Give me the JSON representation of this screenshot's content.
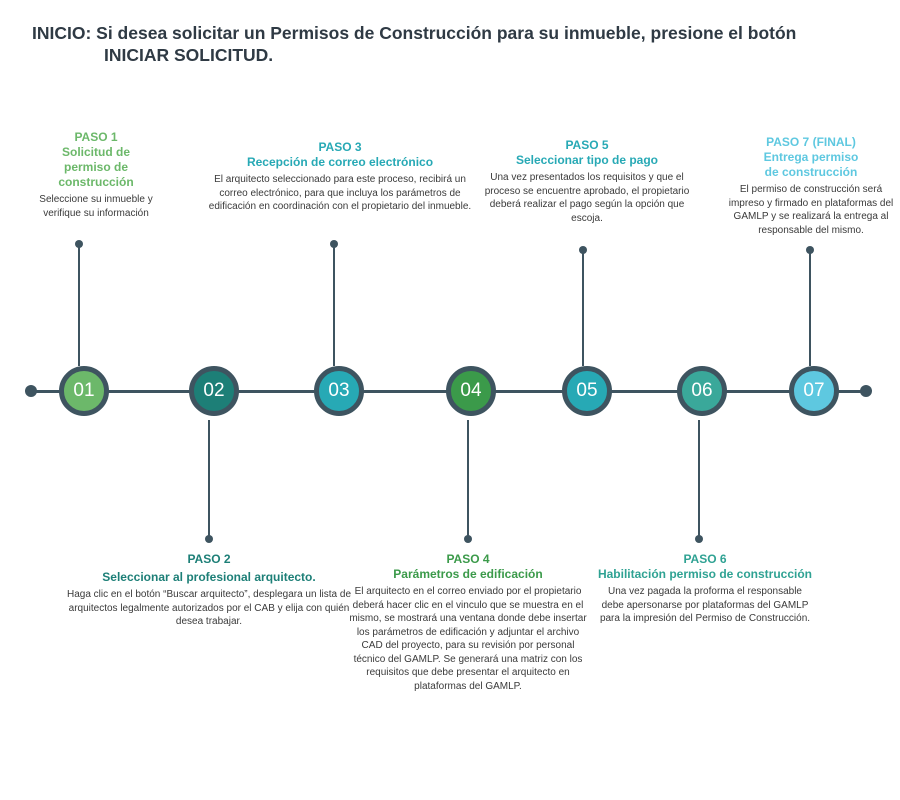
{
  "intro": {
    "line1": "INICIO:  Si desea solicitar un Permisos de Construcción para su inmueble, presione el botón",
    "line2": "INICIAR SOLICITUD."
  },
  "colors": {
    "line": "#3e5460",
    "green_light": "#6cb86a",
    "teal_dark": "#1d7f77",
    "teal": "#27a9b5",
    "green_dark": "#3b9a4a",
    "light_blue": "#5ec8e0"
  },
  "steps": [
    {
      "number": "01",
      "title": "PASO 1",
      "subtitle": "Solicitud de permiso de construcción",
      "description": "Seleccione su inmueble y verifique su información"
    },
    {
      "number": "02",
      "title": "PASO 2",
      "subtitle": "Seleccionar al profesional arquitecto.",
      "description": "Haga clic en el botón “Buscar arquitecto”, desplegara un lista de arquitectos legalmente autorizados por el CAB y elija con quién desea trabajar."
    },
    {
      "number": "03",
      "title": "PASO 3",
      "subtitle": "Recepción de correo electrónico",
      "description": "El arquitecto seleccionado para este proceso, recibirá un correo electrónico, para que incluya los parámetros de edificación en coordinación con el propietario del inmueble."
    },
    {
      "number": "04",
      "title": "PASO 4",
      "subtitle": "Parámetros de edificación",
      "description": "El arquitecto en el correo enviado por el propietario deberá hacer clic en el vinculo que se muestra en el mismo, se mostrará una ventana donde debe insertar los parámetros de edificación y adjuntar el archivo CAD del proyecto, para su revisión por personal técnico del GAMLP. Se generará una matriz con los requisitos que debe presentar el arquitecto en plataformas del GAMLP."
    },
    {
      "number": "05",
      "title": "PASO 5",
      "subtitle": "Seleccionar tipo de pago",
      "description": "Una vez presentados los requisitos y que el proceso se encuentre aprobado, el propietario deberá realizar el pago según la opción que escoja."
    },
    {
      "number": "06",
      "title": "PASO 6",
      "subtitle": "Habilitación permiso de construcción",
      "description": "Una vez pagada la proforma el responsable debe apersonarse por plataformas del GAMLP para la impresión del Permiso de Construcción."
    },
    {
      "number": "07",
      "title": "PASO 7 (FINAL)",
      "subtitle": "Entrega permiso de construcción",
      "description": "El permiso de construcción será impreso  y firmado en plataformas del GAMLP y se realizará la entrega al responsable del mismo."
    }
  ]
}
